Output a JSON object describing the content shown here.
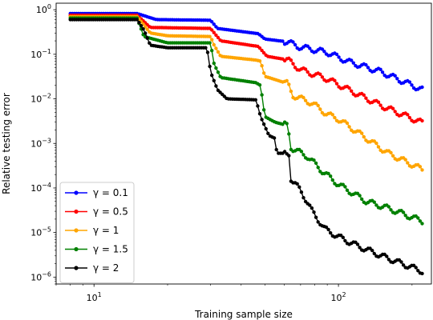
{
  "chart_data": {
    "type": "line",
    "title": "",
    "xlabel": "Training sample size",
    "ylabel": "Relative testing error",
    "xscale": "log",
    "yscale": "log",
    "xlim": [
      7,
      240
    ],
    "ylim": [
      7e-07,
      1.4
    ],
    "xticks": [
      {
        "value": 10,
        "label": "10",
        "sup": "1"
      },
      {
        "value": 100,
        "label": "10",
        "sup": "2"
      }
    ],
    "yticks": [
      {
        "value": 1.0,
        "label": "10",
        "sup": "0"
      },
      {
        "value": 0.1,
        "label": "10",
        "sup": "−1"
      },
      {
        "value": 0.01,
        "label": "10",
        "sup": "−2"
      },
      {
        "value": 0.001,
        "label": "10",
        "sup": "−3"
      },
      {
        "value": 0.0001,
        "label": "10",
        "sup": "−4"
      },
      {
        "value": 1e-05,
        "label": "10",
        "sup": "−5"
      },
      {
        "value": 1e-06,
        "label": "10",
        "sup": "−6"
      }
    ],
    "grid": false,
    "legend": "lower-left",
    "x_start": 8,
    "x_end": 220,
    "series": [
      {
        "name": "γ = 0.1",
        "color": "#0000ff",
        "points": [
          [
            8,
            0.82
          ],
          [
            15,
            0.82
          ],
          [
            18,
            0.6
          ],
          [
            30,
            0.58
          ],
          [
            32,
            0.38
          ],
          [
            47,
            0.29
          ],
          [
            50,
            0.22
          ],
          [
            62,
            0.19
          ],
          [
            68,
            0.15
          ],
          [
            90,
            0.11
          ],
          [
            110,
            0.068
          ],
          [
            150,
            0.04
          ],
          [
            220,
            0.016
          ]
        ]
      },
      {
        "name": "γ = 0.5",
        "color": "#ff0000",
        "points": [
          [
            8,
            0.75
          ],
          [
            15,
            0.75
          ],
          [
            17,
            0.4
          ],
          [
            30,
            0.38
          ],
          [
            33,
            0.2
          ],
          [
            47,
            0.15
          ],
          [
            51,
            0.09
          ],
          [
            62,
            0.075
          ],
          [
            70,
            0.045
          ],
          [
            90,
            0.028
          ],
          [
            110,
            0.016
          ],
          [
            150,
            0.007
          ],
          [
            220,
            0.0029
          ]
        ]
      },
      {
        "name": "γ = 1",
        "color": "#ffa500",
        "points": [
          [
            8,
            0.7
          ],
          [
            15,
            0.7
          ],
          [
            17,
            0.3
          ],
          [
            20,
            0.26
          ],
          [
            30,
            0.25
          ],
          [
            31,
            0.16
          ],
          [
            33,
            0.09
          ],
          [
            46,
            0.074
          ],
          [
            48,
            0.07
          ],
          [
            50,
            0.032
          ],
          [
            62,
            0.022
          ],
          [
            65,
            0.012
          ],
          [
            78,
            0.008
          ],
          [
            90,
            0.0045
          ],
          [
            100,
            0.0035
          ],
          [
            130,
            0.0013
          ],
          [
            160,
            0.0006
          ],
          [
            220,
            0.00026
          ]
        ]
      },
      {
        "name": "γ = 1.5",
        "color": "#008000",
        "points": [
          [
            8,
            0.65
          ],
          [
            15,
            0.65
          ],
          [
            16,
            0.25
          ],
          [
            20,
            0.18
          ],
          [
            30,
            0.18
          ],
          [
            31,
            0.06
          ],
          [
            33,
            0.03
          ],
          [
            46,
            0.023
          ],
          [
            48,
            0.02
          ],
          [
            50,
            0.004
          ],
          [
            55,
            0.003
          ],
          [
            62,
            0.0025
          ],
          [
            64,
            0.0008
          ],
          [
            75,
            0.0005
          ],
          [
            85,
            0.00025
          ],
          [
            100,
            0.00012
          ],
          [
            130,
            5e-05
          ],
          [
            160,
            3.5e-05
          ],
          [
            220,
            1.8e-05
          ]
        ]
      },
      {
        "name": "γ = 2",
        "color": "#000000",
        "points": [
          [
            8,
            0.6
          ],
          [
            15,
            0.6
          ],
          [
            16,
            0.35
          ],
          [
            17,
            0.16
          ],
          [
            20,
            0.14
          ],
          [
            29,
            0.14
          ],
          [
            30,
            0.04
          ],
          [
            32,
            0.016
          ],
          [
            35,
            0.01
          ],
          [
            46,
            0.0095
          ],
          [
            48,
            0.004
          ],
          [
            52,
            0.0015
          ],
          [
            55,
            0.0013
          ],
          [
            56,
            0.0006
          ],
          [
            63,
            0.0006
          ],
          [
            64,
            0.00015
          ],
          [
            70,
            9e-05
          ],
          [
            78,
            3e-05
          ],
          [
            88,
            1.2e-05
          ],
          [
            100,
            8e-06
          ],
          [
            120,
            5e-06
          ],
          [
            150,
            3e-06
          ],
          [
            220,
            1.35e-06
          ]
        ]
      }
    ]
  }
}
